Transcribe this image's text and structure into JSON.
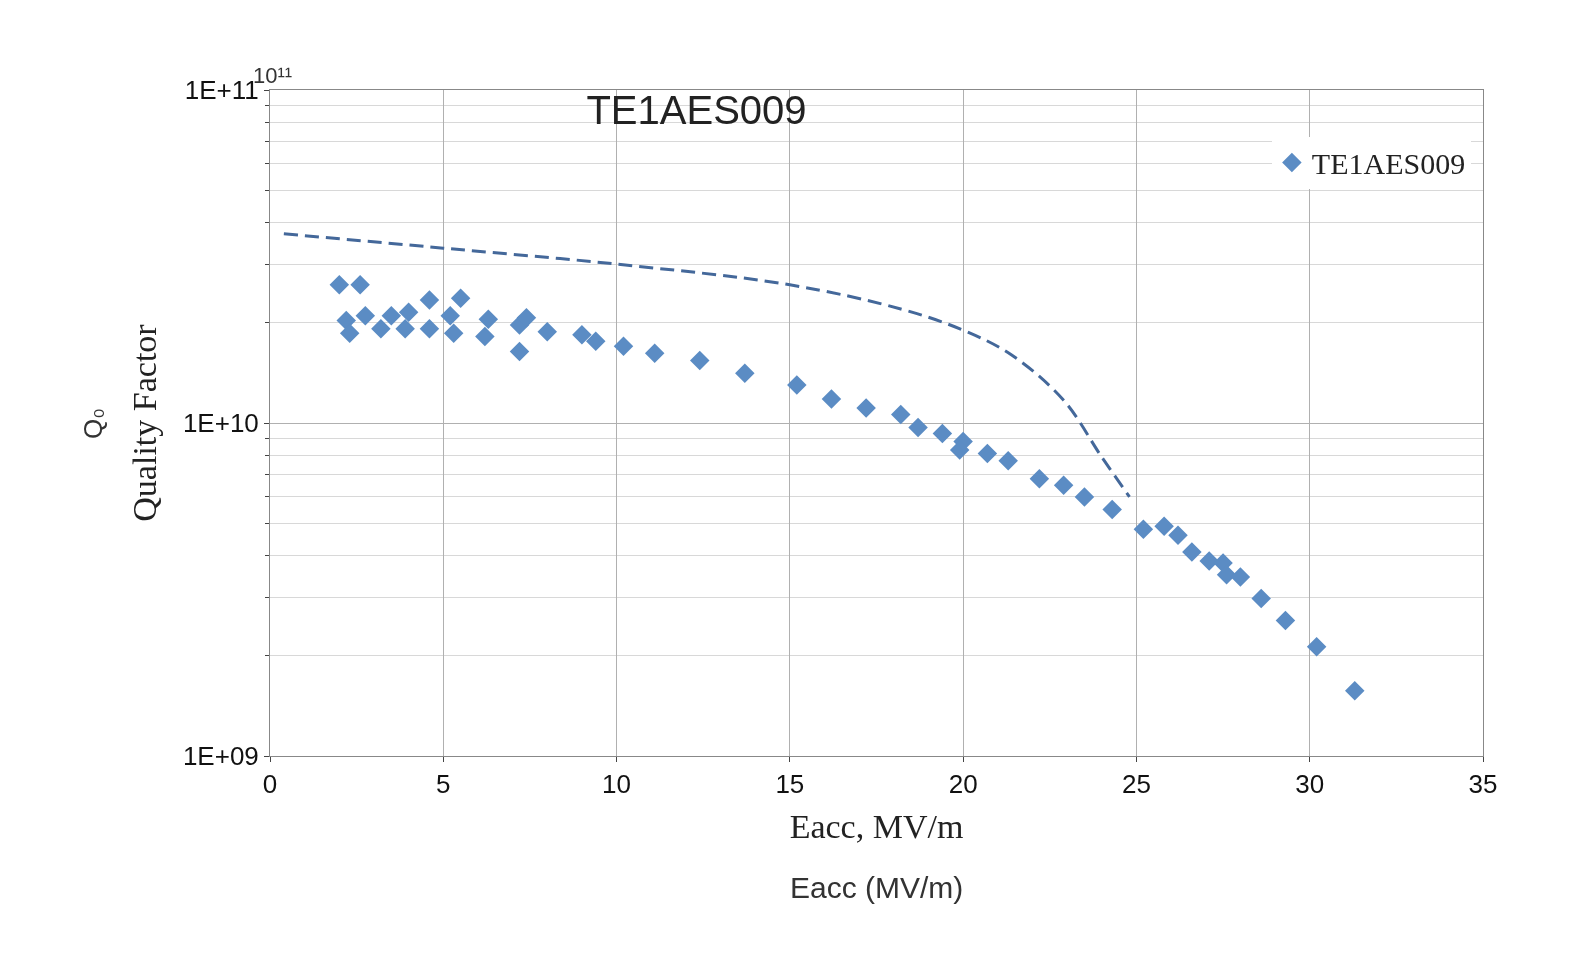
{
  "chart_data": {
    "type": "scatter",
    "title": "TE1AES009",
    "xlabel": "Eacc, MV/m",
    "ylabel": "Quality Factor",
    "annotations": [
      "10¹¹",
      "Q₀",
      "Eacc (MV/m)"
    ],
    "log": "y",
    "grid": true,
    "legend": "top right",
    "xlim": [
      0,
      35
    ],
    "xticks": [
      0,
      5,
      10,
      15,
      20,
      25,
      30,
      35
    ],
    "ylim": [
      1000000000.0,
      100000000000.0
    ],
    "yticks": [
      {
        "value": 1000000000.0,
        "label": "1E+09"
      },
      {
        "value": 10000000000.0,
        "label": "1E+10"
      },
      {
        "value": 100000000000.0,
        "label": "1E+11"
      }
    ],
    "series": [
      {
        "name": "TE1AES009",
        "marker": "diamond",
        "color": "#5b8cc4",
        "x": [
          2.0,
          2.6,
          2.2,
          2.3,
          2.75,
          3.2,
          3.5,
          3.9,
          4.0,
          4.6,
          4.6,
          5.2,
          5.3,
          5.5,
          6.2,
          6.3,
          7.2,
          7.2,
          7.4,
          8.0,
          9.0,
          9.4,
          10.2,
          11.1,
          12.4,
          13.7,
          15.2,
          16.2,
          17.2,
          18.2,
          18.7,
          19.4,
          20.0,
          19.9,
          20.7,
          21.3,
          22.2,
          22.9,
          23.5,
          24.3,
          25.2,
          25.8,
          26.2,
          26.6,
          27.1,
          27.5,
          27.6,
          28.0,
          28.6,
          29.3,
          30.2,
          31.3
        ],
        "values": [
          26000000000.0,
          26000000000.0,
          20300000000.0,
          18600000000.0,
          21000000000.0,
          19200000000.0,
          21000000000.0,
          19200000000.0,
          21500000000.0,
          23400000000.0,
          19200000000.0,
          21000000000.0,
          18600000000.0,
          23700000000.0,
          18200000000.0,
          20500000000.0,
          19700000000.0,
          16400000000.0,
          20700000000.0,
          18800000000.0,
          18400000000.0,
          17600000000.0,
          17000000000.0,
          16200000000.0,
          15400000000.0,
          14100000000.0,
          13000000000.0,
          11800000000.0,
          11100000000.0,
          10600000000.0,
          9700000000.0,
          9300000000.0,
          8800000000.0,
          8300000000.0,
          8100000000.0,
          7700000000.0,
          6800000000.0,
          6500000000.0,
          6000000000.0,
          5500000000.0,
          4800000000.0,
          4900000000.0,
          4600000000.0,
          4100000000.0,
          3850000000.0,
          3800000000.0,
          3500000000.0,
          3450000000.0,
          2970000000.0,
          2550000000.0,
          2130000000.0,
          1570000000.0
        ]
      },
      {
        "type": "line",
        "line_style": "dashed",
        "marker": "none",
        "color": "#44689a",
        "x": [
          0.4,
          5,
          10,
          15,
          18.2,
          20,
          21.4,
          22.9,
          24,
          24.8
        ],
        "values": [
          37000000000.0,
          33500000000.0,
          30000000000.0,
          26000000000.0,
          22000000000.0,
          19000000000.0,
          16000000000.0,
          11700000000.0,
          7900000000.0,
          6000000000.0
        ]
      }
    ]
  }
}
